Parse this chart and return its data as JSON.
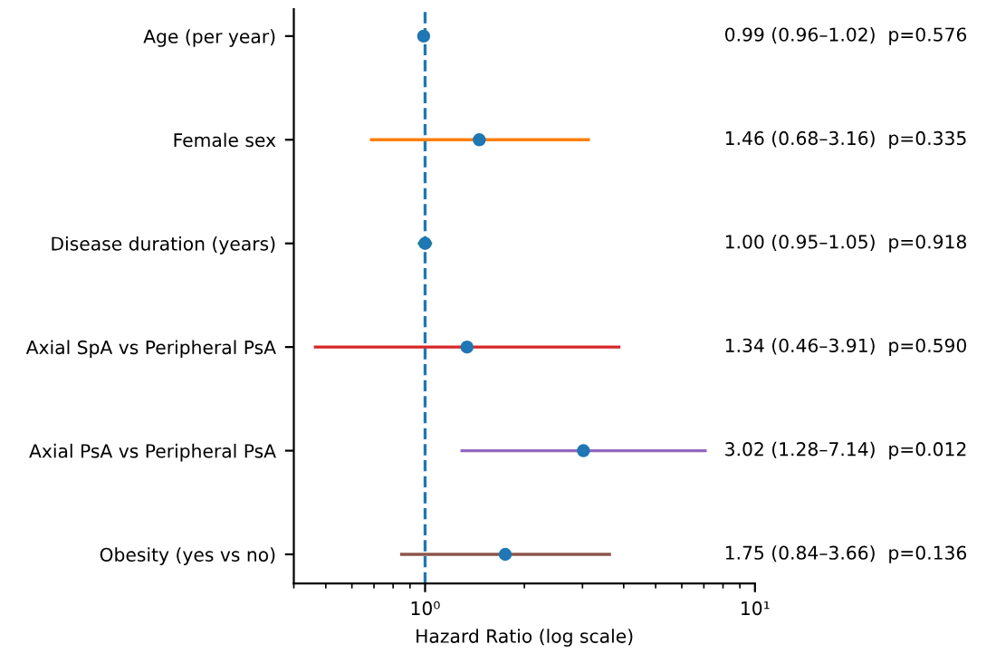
{
  "chart_data": {
    "type": "scatter",
    "orientation": "horizontal",
    "xlabel": "Hazard Ratio (log scale)",
    "log": "x",
    "categories": [
      "Age (per year)",
      "Female sex",
      "Disease duration (years)",
      "Axial SpA vs Peripheral PsA",
      "Axial PsA vs Peripheral PsA",
      "Obesity (yes vs no)"
    ],
    "series": [
      {
        "color": "#1f77b4",
        "colors": [
          "#1f77b4",
          null,
          null,
          null,
          null,
          null
        ],
        "values": [
          0.99,
          null,
          null,
          null,
          null,
          null
        ],
        "errors": [
          [
            0.96,
            1.02
          ],
          null,
          null,
          null,
          null,
          null
        ]
      },
      {
        "color": "#ff7f0e",
        "colors": [
          null,
          "#1f77b4",
          null,
          null,
          null,
          null
        ],
        "values": [
          null,
          1.46,
          null,
          null,
          null,
          null
        ],
        "errors": [
          null,
          [
            0.68,
            3.16
          ],
          null,
          null,
          null,
          null
        ]
      },
      {
        "color": "#2ca02c",
        "colors": [
          null,
          null,
          "#1f77b4",
          null,
          null,
          null
        ],
        "values": [
          null,
          null,
          1.0,
          null,
          null,
          null
        ],
        "errors": [
          null,
          null,
          [
            0.95,
            1.05
          ],
          null,
          null,
          null
        ]
      },
      {
        "color": "#d62728",
        "colors": [
          null,
          null,
          null,
          "#1f77b4",
          null,
          null
        ],
        "values": [
          null,
          null,
          null,
          1.34,
          null,
          null
        ],
        "errors": [
          null,
          null,
          null,
          [
            0.46,
            3.91
          ],
          null,
          null
        ]
      },
      {
        "color": "#9467bd",
        "colors": [
          null,
          null,
          null,
          null,
          "#1f77b4",
          null
        ],
        "values": [
          null,
          null,
          null,
          null,
          3.02,
          null
        ],
        "errors": [
          null,
          null,
          null,
          null,
          [
            1.28,
            7.14
          ],
          null
        ]
      },
      {
        "color": "#8c564b",
        "colors": [
          null,
          null,
          null,
          null,
          null,
          "#1f77b4"
        ],
        "values": [
          null,
          null,
          null,
          null,
          null,
          1.75
        ],
        "errors": [
          null,
          null,
          null,
          null,
          null,
          [
            0.84,
            3.66
          ]
        ]
      }
    ],
    "annotations": [
      "0.99 (0.96–1.02)  p=0.576",
      "1.46 (0.68–3.16)  p=0.335",
      "1.00 (0.95–1.05)  p=0.918",
      "1.34 (0.46–3.91)  p=0.590",
      "3.02 (1.28–7.14)  p=0.012",
      "1.75 (0.84–3.66)  p=0.136"
    ],
    "xlim": [
      0.4,
      10
    ],
    "xticks": [
      {
        "value": 1,
        "label": "10⁰"
      },
      {
        "value": 10,
        "label": "10¹"
      }
    ],
    "ref_lines": [
      {
        "axis": "x",
        "value": 1,
        "color": "#1f77b4",
        "line_style": "dashed"
      }
    ],
    "marker": "circle",
    "grid": false,
    "legend": false
  }
}
